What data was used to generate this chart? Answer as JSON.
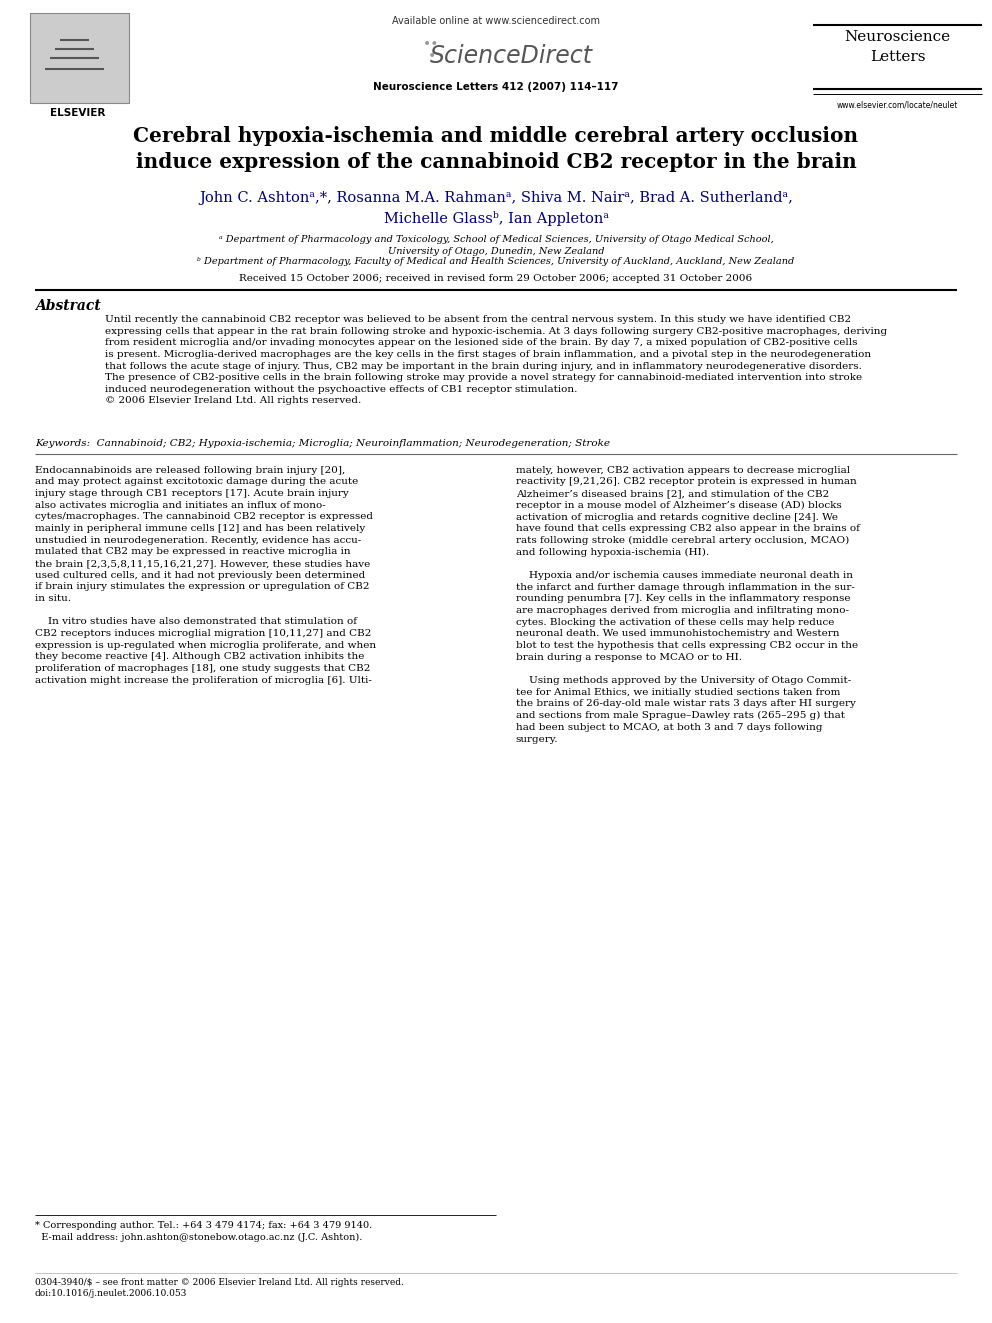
{
  "page_width": 9.92,
  "page_height": 13.23,
  "bg_color": "#ffffff",
  "header": {
    "available_text": "Available online at www.sciencedirect.com",
    "sciencedirect": "ScienceDirect",
    "journal_name": "Neuroscience\nLetters",
    "journal_ref": "Neuroscience Letters 412 (2007) 114–117",
    "website": "www.elsevier.com/locate/neulet",
    "elsevier_label": "ELSEVIER"
  },
  "title": "Cerebral hypoxia-ischemia and middle cerebral artery occlusion\ninduce expression of the cannabinoid CB2 receptor in the brain",
  "authors": "John C. Ashtonᵃ,*, Rosanna M.A. Rahmanᵃ, Shiva M. Nairᵃ, Brad A. Sutherlandᵃ,\nMichelle Glassᵇ, Ian Appletonᵃ",
  "affil_a": "ᵃ Department of Pharmacology and Toxicology, School of Medical Sciences, University of Otago Medical School,\nUniversity of Otago, Dunedin, New Zealand",
  "affil_b": "ᵇ Department of Pharmacology, Faculty of Medical and Health Sciences, University of Auckland, Auckland, New Zealand",
  "received": "Received 15 October 2006; received in revised form 29 October 2006; accepted 31 October 2006",
  "abstract_title": "Abstract",
  "abstract_text": "Until recently the cannabinoid CB2 receptor was believed to be absent from the central nervous system. In this study we have identified CB2\nexpressing cells that appear in the rat brain following stroke and hypoxic-ischemia. At 3 days following surgery CB2-positive macrophages, deriving\nfrom resident microglia and/or invading monocytes appear on the lesioned side of the brain. By day 7, a mixed population of CB2-positive cells\nis present. Microglia-derived macrophages are the key cells in the first stages of brain inflammation, and a pivotal step in the neurodegeneration\nthat follows the acute stage of injury. Thus, CB2 may be important in the brain during injury, and in inflammatory neurodegenerative disorders.\nThe presence of CB2-positive cells in the brain following stroke may provide a novel strategy for cannabinoid-mediated intervention into stroke\ninduced neurodegeneration without the psychoactive effects of CB1 receptor stimulation.\n© 2006 Elsevier Ireland Ltd. All rights reserved.",
  "keywords": "Keywords:  Cannabinoid; CB2; Hypoxia-ischemia; Microglia; Neuroinflammation; Neurodegeneration; Stroke",
  "col1_text": "Endocannabinoids are released following brain injury [20],\nand may protect against excitotoxic damage during the acute\ninjury stage through CB1 receptors [17]. Acute brain injury\nalso activates microglia and initiates an influx of mono-\ncytes/macrophages. The cannabinoid CB2 receptor is expressed\nmainly in peripheral immune cells [12] and has been relatively\nunstudied in neurodegeneration. Recently, evidence has accu-\nmulated that CB2 may be expressed in reactive microglia in\nthe brain [2,3,5,8,11,15,16,21,27]. However, these studies have\nused cultured cells, and it had not previously been determined\nif brain injury stimulates the expression or upregulation of CB2\nin situ.\n\n    In vitro studies have also demonstrated that stimulation of\nCB2 receptors induces microglial migration [10,11,27] and CB2\nexpression is up-regulated when microglia proliferate, and when\nthey become reactive [4]. Although CB2 activation inhibits the\nproliferation of macrophages [18], one study suggests that CB2\nactivation might increase the proliferation of microglia [6]. Ulti-",
  "col2_text": "mately, however, CB2 activation appears to decrease microglial\nreactivity [9,21,26]. CB2 receptor protein is expressed in human\nAlzheimer’s diseased brains [2], and stimulation of the CB2\nreceptor in a mouse model of Alzheimer’s disease (AD) blocks\nactivation of microglia and retards cognitive decline [24]. We\nhave found that cells expressing CB2 also appear in the brains of\nrats following stroke (middle cerebral artery occlusion, MCAO)\nand following hypoxia-ischemia (HI).\n\n    Hypoxia and/or ischemia causes immediate neuronal death in\nthe infarct and further damage through inflammation in the sur-\nrounding penumbra [7]. Key cells in the inflammatory response\nare macrophages derived from microglia and infiltrating mono-\ncytes. Blocking the activation of these cells may help reduce\nneuronal death. We used immunohistochemistry and Western\nblot to test the hypothesis that cells expressing CB2 occur in the\nbrain during a response to MCAO or to HI.\n\n    Using methods approved by the University of Otago Commit-\ntee for Animal Ethics, we initially studied sections taken from\nthe brains of 26-day-old male wistar rats 3 days after HI surgery\nand sections from male Sprague–Dawley rats (265–295 g) that\nhad been subject to MCAO, at both 3 and 7 days following\nsurgery.",
  "footnote_star": "* Corresponding author. Tel.: +64 3 479 4174; fax: +64 3 479 9140.\n  E-mail address: john.ashton@stonebow.otago.ac.nz (J.C. Ashton).",
  "footnote_bottom": "0304-3940/$ – see front matter © 2006 Elsevier Ireland Ltd. All rights reserved.\ndoi:10.1016/j.neulet.2006.10.053"
}
